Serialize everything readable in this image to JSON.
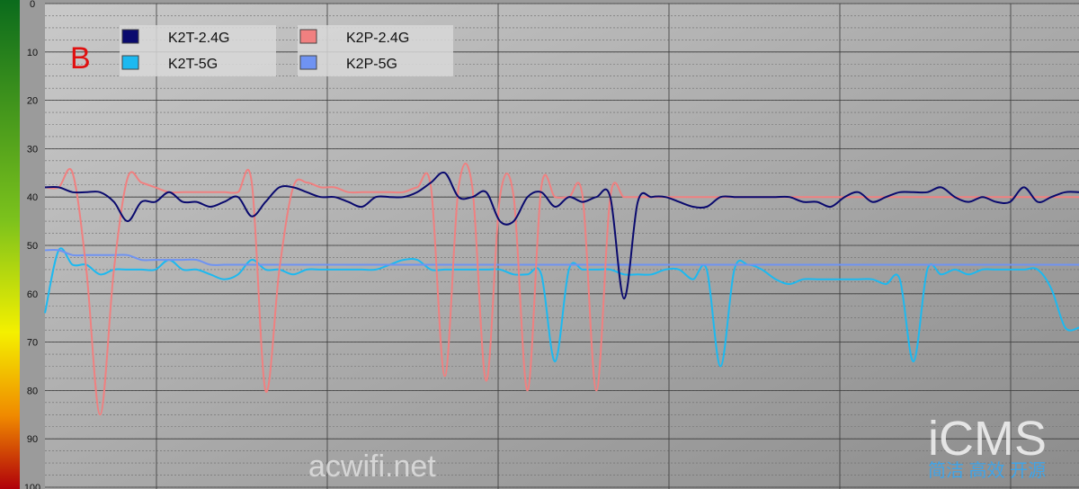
{
  "panel_label": "B",
  "watermark_site": "acwifi.net",
  "watermark_brand": "iCMS",
  "watermark_slogan": "简洁 高效 开源",
  "colors": {
    "background_light": "#c9c9c9",
    "background_dark": "#8c8c8c",
    "panel_label": "#e01010",
    "scale_bar_top": "#0b6b1c",
    "scale_bar_mid": "#f4f000",
    "scale_bar_bottom": "#b0000a"
  },
  "chart_data": {
    "type": "line",
    "y_axis": {
      "range": [
        0,
        100
      ],
      "inverted": true,
      "ticks": [
        "0",
        "10",
        "20",
        "30",
        "40",
        "50",
        "60",
        "70",
        "80",
        "90",
        "100"
      ]
    },
    "x_axis": {
      "labels": "none",
      "vertical_gridlines": true
    },
    "grid": true,
    "legend": {
      "placement": "top-left"
    },
    "x": [
      0,
      4,
      8,
      12,
      16,
      20,
      24,
      28,
      32,
      36,
      40,
      44,
      48,
      52,
      56,
      60,
      64,
      68,
      72,
      76,
      80,
      84,
      88,
      92,
      96,
      100,
      104,
      108,
      112,
      116,
      120,
      124,
      128,
      132,
      136,
      140,
      144,
      148,
      152,
      156,
      160,
      164,
      168,
      172,
      176,
      180,
      184,
      188,
      192,
      196,
      200,
      204,
      208,
      212,
      216,
      220,
      224,
      228,
      232,
      236,
      240,
      244,
      248,
      252,
      256,
      260,
      264,
      268,
      272,
      276,
      280,
      284,
      288,
      292,
      296,
      300
    ],
    "series": [
      {
        "name": "K2T-2.4G",
        "color": "#0a0a6e",
        "values": [
          38,
          38,
          39,
          39,
          39,
          41,
          45,
          41,
          41,
          39,
          41,
          41,
          42,
          41,
          40,
          44,
          41,
          38,
          38,
          39,
          40,
          40,
          41,
          42,
          40,
          40,
          40,
          39,
          37,
          35,
          40,
          40,
          39,
          45,
          45,
          40,
          39,
          42,
          40,
          41,
          40,
          40,
          61,
          41,
          40,
          40,
          41,
          42,
          42,
          40,
          40,
          40,
          40,
          40,
          40,
          41,
          41,
          42,
          40,
          39,
          41,
          40,
          39,
          39,
          39,
          38,
          40,
          41,
          40,
          41,
          41,
          38,
          41,
          40,
          39,
          39
        ],
        "line_style": "solid"
      },
      {
        "name": "K2T-5G",
        "color": "#1cb9f0",
        "values": [
          64,
          51,
          54,
          54,
          56,
          55,
          55,
          55,
          55,
          53,
          55,
          55,
          56,
          57,
          56,
          53,
          55,
          55,
          56,
          55,
          55,
          55,
          55,
          55,
          55,
          54,
          53,
          53,
          55,
          55,
          55,
          55,
          55,
          55,
          56,
          56,
          56,
          74,
          55,
          55,
          55,
          55,
          56,
          56,
          56,
          55,
          55,
          57,
          55,
          75,
          55,
          54,
          55,
          57,
          58,
          57,
          57,
          57,
          57,
          57,
          57,
          58,
          57,
          74,
          55,
          56,
          55,
          56,
          55,
          55,
          55,
          55,
          55,
          59,
          67,
          67
        ],
        "line_style": "solid"
      },
      {
        "name": "K2P-2.4G",
        "color": "#f08080",
        "values": [
          38,
          38,
          35,
          55,
          85,
          55,
          36,
          37,
          38,
          39,
          39,
          39,
          39,
          39,
          39,
          37,
          80,
          55,
          38,
          37,
          38,
          38,
          39,
          39,
          39,
          39,
          39,
          38,
          38,
          77,
          38,
          38,
          78,
          40,
          40,
          80,
          38,
          40,
          40,
          40,
          80,
          40,
          40,
          40,
          40,
          40,
          40,
          40,
          40,
          40,
          40,
          40,
          40,
          40,
          40,
          40,
          40,
          40,
          40,
          40,
          40,
          40,
          40,
          40,
          40,
          40,
          40,
          40,
          40,
          40,
          40,
          40,
          40,
          40,
          40,
          40
        ],
        "line_style": "solid"
      },
      {
        "name": "K2P-5G",
        "color": "#6f93f2",
        "values": [
          51,
          51,
          52,
          52,
          52,
          52,
          52,
          53,
          53,
          53,
          53,
          53,
          54,
          54,
          54,
          54,
          54,
          54,
          54,
          54,
          54,
          54,
          54,
          54,
          54,
          54,
          54,
          54,
          54,
          54,
          54,
          54,
          54,
          54,
          54,
          54,
          54,
          54,
          54,
          54,
          54,
          54,
          54,
          54,
          54,
          54,
          54,
          54,
          54,
          54,
          54,
          54,
          54,
          54,
          54,
          54,
          54,
          54,
          54,
          54,
          54,
          54,
          54,
          54,
          54,
          54,
          54,
          54,
          54,
          54,
          54,
          54,
          54,
          54,
          54,
          54
        ],
        "line_style": "solid"
      }
    ]
  }
}
